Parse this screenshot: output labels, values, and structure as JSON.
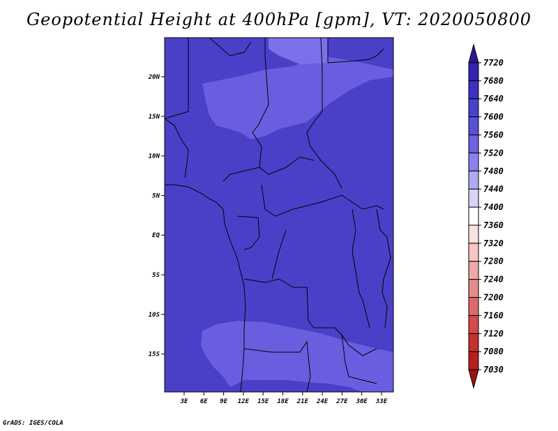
{
  "title": "Geopotential Height at 400hPa [gpm], VT: 2020050800",
  "footer": "GrADS: IGES/COLA",
  "map": {
    "lon_labels": [
      "3E",
      "6E",
      "9E",
      "12E",
      "15E",
      "18E",
      "21E",
      "24E",
      "27E",
      "30E",
      "33E"
    ],
    "lat_labels": [
      "20N",
      "15N",
      "10N",
      "5N",
      "EQ",
      "5S",
      "10S",
      "15S"
    ],
    "colors": {
      "background": "#4a40c8",
      "light_band": "#6a5ee0",
      "lighter_band": "#7c70ea",
      "coast": "#000000"
    }
  },
  "colorbar": {
    "labels": [
      "7720",
      "7680",
      "7640",
      "7600",
      "7560",
      "7520",
      "7480",
      "7440",
      "7400",
      "7360",
      "7320",
      "7280",
      "7240",
      "7200",
      "7160",
      "7120",
      "7080",
      "7030"
    ],
    "colors": [
      "#2a1a9a",
      "#3323ae",
      "#3e31c0",
      "#4a40cc",
      "#5a50d8",
      "#6c62e2",
      "#8a82ea",
      "#b0aaf2",
      "#d8d4f8",
      "#ffffff",
      "#fde0e0",
      "#f8c4c4",
      "#f0a8a8",
      "#e48a8a",
      "#dc6a6a",
      "#d44a4a",
      "#c83030",
      "#b81e1e",
      "#a01010"
    ]
  }
}
